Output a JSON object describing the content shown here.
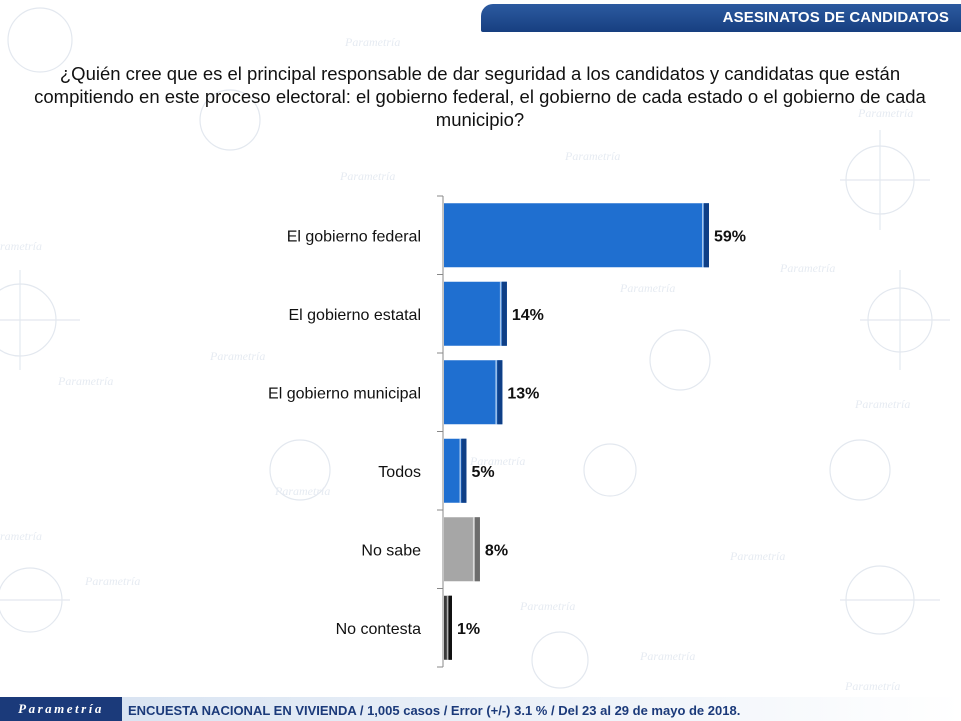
{
  "header": {
    "section_title": "ASESINATOS DE CANDIDATOS"
  },
  "question": "¿Quién cree que es el principal responsable de dar seguridad a los candidatos y candidatas que están compitiendo en este proceso electoral: el gobierno federal, el gobierno de cada estado o el gobierno de cada municipio?",
  "colors": {
    "blue_bar": "#1f6fd0",
    "blue_edge": "#0f3f86",
    "gray_bar": "#a6a6a6",
    "gray_edge": "#6d6d6d",
    "dark_bar": "#3a3a3a",
    "dark_edge": "#111111",
    "banner": "#1b3f82"
  },
  "chart_data": {
    "type": "bar",
    "orientation": "horizontal",
    "categories": [
      "El gobierno federal",
      "El gobierno estatal",
      "El gobierno municipal",
      "Todos",
      "No sabe",
      "No contesta"
    ],
    "values": [
      59,
      14,
      13,
      5,
      8,
      1
    ],
    "value_labels": [
      "59%",
      "14%",
      "13%",
      "5%",
      "8%",
      "1%"
    ],
    "bar_colors": [
      "blue",
      "blue",
      "blue",
      "blue",
      "gray",
      "dark"
    ],
    "xlim": [
      0,
      100
    ],
    "grid": false
  },
  "footer": {
    "logo_text": "Parametría",
    "methodology": "ENCUESTA NACIONAL EN VIVIENDA / 1,005 casos / Error (+/-) 3.1 % / Del 23 al 29 de mayo de 2018."
  }
}
